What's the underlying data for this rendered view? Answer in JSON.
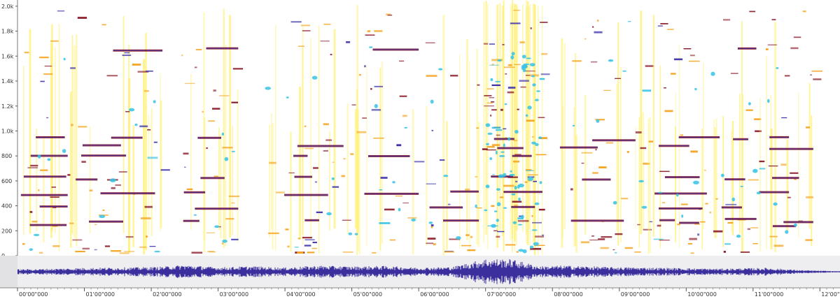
{
  "chart_data": [
    {
      "type": "heatmap",
      "title": "",
      "xlabel": "",
      "ylabel": "",
      "ylim": [
        0,
        2050
      ],
      "yticks": [
        "0",
        "200",
        "400",
        "600",
        "800",
        "1.0k",
        "1.2k",
        "1.4k",
        "1.6k",
        "1.8k",
        "2.0k"
      ],
      "ytick_values": [
        0,
        200,
        400,
        600,
        800,
        1000,
        1200,
        1400,
        1600,
        1800,
        2000
      ],
      "xlim_minutes": [
        0,
        12.3
      ],
      "activity_segments_minutes": [
        [
          0,
          0.75
        ],
        [
          0.75,
          2.2
        ],
        [
          2.4,
          3.3
        ],
        [
          3.7,
          5.05
        ],
        [
          5.05,
          6.0
        ],
        [
          6.1,
          6.9
        ],
        [
          6.95,
          7.85
        ],
        [
          8.1,
          9.4
        ],
        [
          9.4,
          10.5
        ],
        [
          10.5,
          11.05
        ],
        [
          11.05,
          11.9
        ]
      ],
      "sustained_tones_hz": [
        380,
        620,
        940,
        800,
        280,
        1650,
        500,
        250,
        870
      ],
      "colors": {
        "low": "#ffef6a",
        "mid": "#f5a623",
        "high": "#8b1d2c",
        "peak": "#3a2fa8",
        "hot": "#35c3e6"
      }
    },
    {
      "type": "area",
      "title": "",
      "xlabel": "",
      "ylabel": "",
      "xticks": [
        "00'00\"000",
        "01'00\"000",
        "02'00\"000",
        "03'00\"000",
        "04'00\"000",
        "05'00\"000",
        "06'00\"000",
        "07'00\"000",
        "08'00\"000",
        "09'00\"000",
        "10'00\"000",
        "11'00\"000",
        "12'00\"000"
      ],
      "xtick_values_minutes": [
        0,
        1,
        2,
        3,
        4,
        5,
        6,
        7,
        8,
        9,
        10,
        11,
        12
      ],
      "xlim_minutes": [
        0,
        12.3
      ],
      "amplitude_profile": [
        [
          0,
          0.18
        ],
        [
          0.5,
          0.22
        ],
        [
          1.0,
          0.28
        ],
        [
          1.5,
          0.3
        ],
        [
          2.1,
          0.35
        ],
        [
          2.5,
          0.5
        ],
        [
          3.0,
          0.32
        ],
        [
          3.5,
          0.4
        ],
        [
          4.0,
          0.3
        ],
        [
          4.5,
          0.45
        ],
        [
          5.0,
          0.38
        ],
        [
          5.5,
          0.42
        ],
        [
          6.0,
          0.3
        ],
        [
          6.5,
          0.35
        ],
        [
          7.0,
          0.95
        ],
        [
          7.4,
          0.9
        ],
        [
          7.8,
          0.4
        ],
        [
          8.2,
          0.45
        ],
        [
          8.8,
          0.35
        ],
        [
          9.5,
          0.3
        ],
        [
          10.5,
          0.22
        ],
        [
          11.2,
          0.28
        ],
        [
          11.7,
          0.12
        ],
        [
          12.2,
          0.05
        ]
      ],
      "colors": {
        "wave": "#3b2f9e",
        "strip": "#eeeef0",
        "centerline": "#5550a8"
      }
    }
  ]
}
